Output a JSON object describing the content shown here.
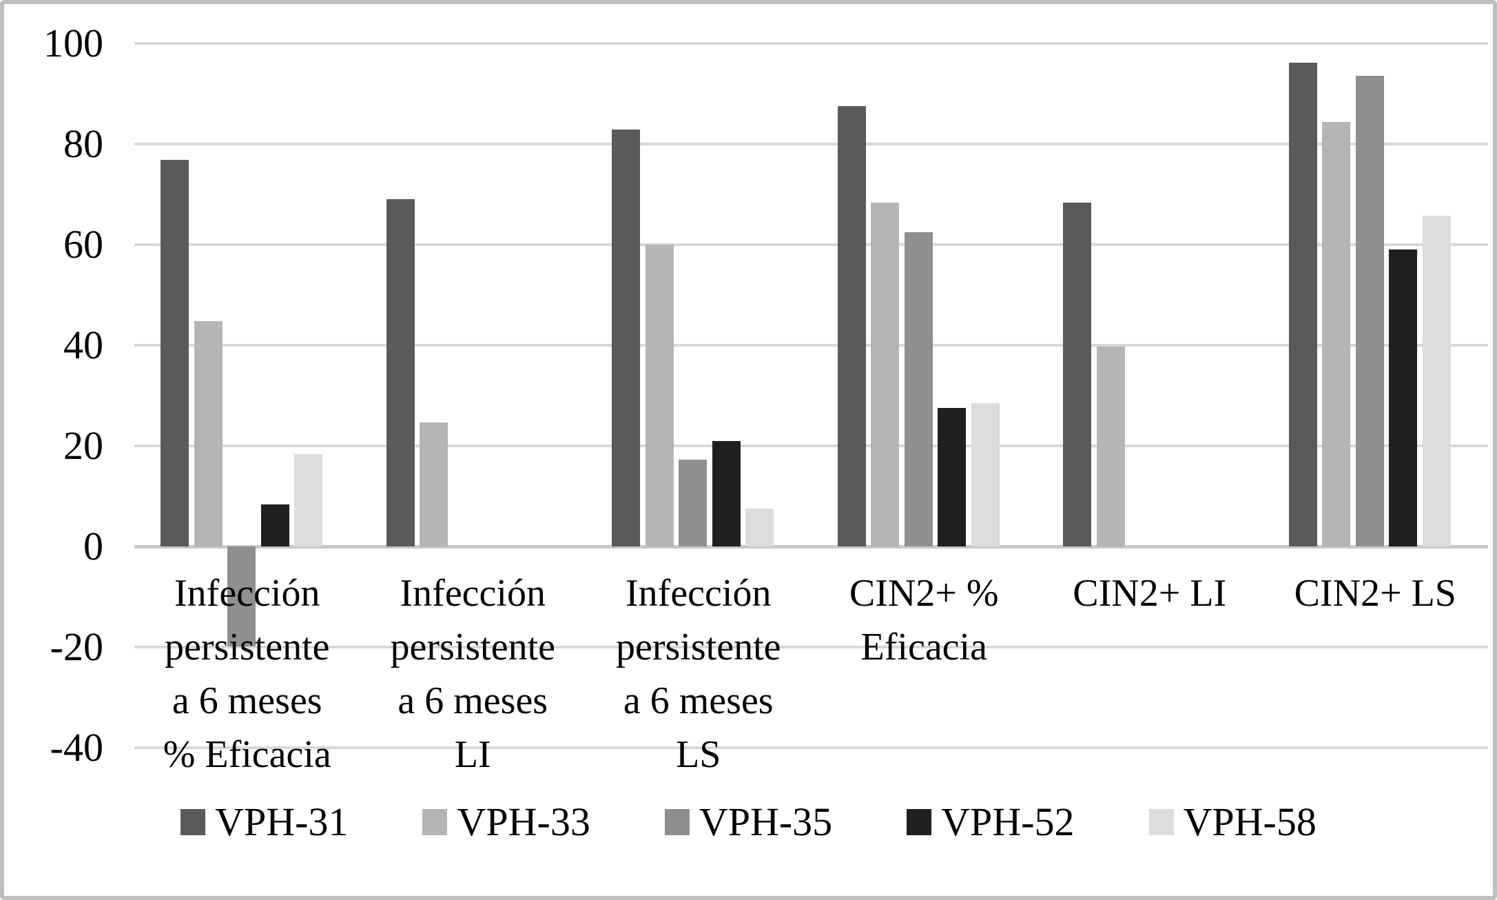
{
  "chart_data": {
    "type": "bar",
    "title": "",
    "xlabel": "",
    "ylabel": "",
    "categories": [
      "Infección\npersistente\na 6 meses\n% Eficacia",
      "Infección\npersistente\na 6 meses\nLI",
      "Infección\npersistente\na 6 meses\nLS",
      "CIN2+ %\nEficacia",
      "CIN2+ LI",
      "CIN2+ LS"
    ],
    "series": [
      {
        "name": "VPH-31",
        "color": "#5a5a5a",
        "values": [
          76.8,
          69.0,
          82.9,
          87.5,
          68.3,
          96.1
        ]
      },
      {
        "name": "VPH-33",
        "color": "#b5b5b5",
        "values": [
          44.8,
          24.6,
          60.0,
          68.3,
          39.7,
          84.4
        ]
      },
      {
        "name": "VPH-35",
        "color": "#8f8f8f",
        "values": [
          -19.8,
          null,
          17.2,
          62.5,
          null,
          93.6
        ]
      },
      {
        "name": "VPH-52",
        "color": "#1f1f1f",
        "values": [
          8.3,
          null,
          21.0,
          27.6,
          null,
          59.1
        ]
      },
      {
        "name": "VPH-58",
        "color": "#dcdcdc",
        "values": [
          18.3,
          null,
          7.5,
          28.5,
          null,
          65.7
        ]
      }
    ],
    "ylim": [
      -40,
      100
    ],
    "yticks": [
      100,
      80,
      60,
      40,
      20,
      0,
      -20,
      -40
    ],
    "ytick_labels": [
      "100",
      "80",
      "60",
      "40",
      "20",
      "0",
      "-20",
      "-40"
    ],
    "grid": true,
    "legend_position": "bottom"
  },
  "colors": {
    "background": "#ffffff",
    "frame_border": "#bfbfbf",
    "gridline": "#d8d8d8",
    "zero_line": "#c9c9c9",
    "text": "#000000"
  }
}
